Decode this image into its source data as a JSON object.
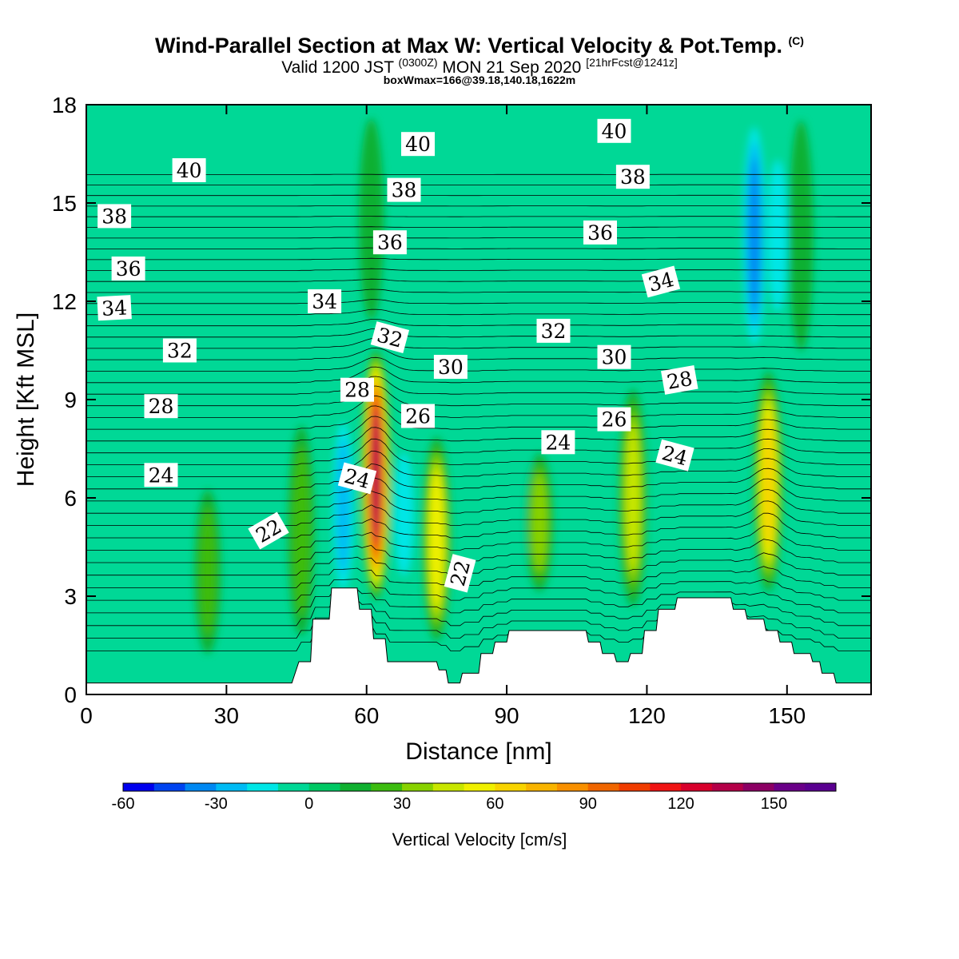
{
  "header": {
    "title": "Wind-Parallel Section at Max W: Vertical Velocity & Pot.Temp.",
    "title_tag": "(C)",
    "valid_prefix": "Valid 1200 JST",
    "valid_utc": "(0300Z)",
    "valid_date": "MON 21 Sep 2020",
    "forecast": "[21hrFcst@1241z]",
    "box_info": "boxWmax=166@39.18,140.18,1622m"
  },
  "chart_data": {
    "type": "heatmap",
    "xlabel": "Distance [nm]",
    "ylabel": "Height [Kft MSL]",
    "xlim": [
      0,
      168
    ],
    "ylim": [
      0,
      18
    ],
    "x_ticks": [
      "0",
      "30",
      "60",
      "90",
      "120",
      "150"
    ],
    "x_tick_values": [
      0,
      30,
      60,
      90,
      120,
      150
    ],
    "y_ticks": [
      "0",
      "3",
      "6",
      "9",
      "12",
      "15",
      "18"
    ],
    "y_tick_values": [
      0,
      3,
      6,
      9,
      12,
      15,
      18
    ],
    "background_level_color": "#00d896",
    "updrafts": [
      {
        "x": 26,
        "ymin": 1.0,
        "ymax": 6.5,
        "peak": 22
      },
      {
        "x": 46,
        "ymin": 1.5,
        "ymax": 8.5,
        "peak": 25
      },
      {
        "x": 62,
        "ymin": 2.8,
        "ymax": 10.6,
        "peak": 132
      },
      {
        "x": 75,
        "ymin": 1.5,
        "ymax": 8.0,
        "peak": 58
      },
      {
        "x": 97,
        "ymin": 3.0,
        "ymax": 7.5,
        "peak": 35
      },
      {
        "x": 117,
        "ymin": 2.5,
        "ymax": 9.5,
        "peak": 45
      },
      {
        "x": 146,
        "ymin": 3.0,
        "ymax": 10.0,
        "peak": 65
      },
      {
        "x": 61,
        "ymin": 11.0,
        "ymax": 18.0,
        "peak": 15
      },
      {
        "x": 153,
        "ymin": 10.0,
        "ymax": 18.0,
        "peak": 15
      }
    ],
    "downdrafts": [
      {
        "x": 55,
        "ymin": 2.5,
        "ymax": 9.0,
        "peak": -30
      },
      {
        "x": 68,
        "ymin": 3.0,
        "ymax": 8.0,
        "peak": -25
      },
      {
        "x": 84,
        "ymin": 4.0,
        "ymax": 7.5,
        "peak": -15
      },
      {
        "x": 94,
        "ymin": 4.0,
        "ymax": 7.5,
        "peak": -18
      },
      {
        "x": 143,
        "ymin": 10.0,
        "ymax": 18.0,
        "peak": -40
      },
      {
        "x": 148,
        "ymin": 11.0,
        "ymax": 17.0,
        "peak": -28
      }
    ],
    "terrain": [
      [
        0,
        0.35
      ],
      [
        44,
        0.35
      ],
      [
        45.5,
        1.0
      ],
      [
        48,
        1.0
      ],
      [
        48.5,
        2.3
      ],
      [
        52,
        2.3
      ],
      [
        52.5,
        3.25
      ],
      [
        58,
        3.25
      ],
      [
        58.5,
        2.6
      ],
      [
        61,
        2.6
      ],
      [
        61.5,
        1.7
      ],
      [
        64,
        1.7
      ],
      [
        64.5,
        1.0
      ],
      [
        75,
        1.0
      ],
      [
        75.5,
        0.75
      ],
      [
        77,
        0.75
      ],
      [
        77.5,
        0.35
      ],
      [
        80,
        0.35
      ],
      [
        80.5,
        0.65
      ],
      [
        84,
        0.65
      ],
      [
        84.5,
        1.25
      ],
      [
        87,
        1.25
      ],
      [
        87.5,
        1.6
      ],
      [
        90,
        1.6
      ],
      [
        90.5,
        1.95
      ],
      [
        107,
        1.95
      ],
      [
        107.5,
        1.6
      ],
      [
        110,
        1.6
      ],
      [
        110.5,
        1.25
      ],
      [
        113,
        1.25
      ],
      [
        113.5,
        1.0
      ],
      [
        116,
        1.0
      ],
      [
        116.5,
        1.25
      ],
      [
        119,
        1.25
      ],
      [
        119.5,
        1.95
      ],
      [
        122,
        1.95
      ],
      [
        122.5,
        2.6
      ],
      [
        126,
        2.6
      ],
      [
        126.5,
        2.95
      ],
      [
        138,
        2.95
      ],
      [
        138.5,
        2.6
      ],
      [
        141,
        2.6
      ],
      [
        141.5,
        2.3
      ],
      [
        145,
        2.3
      ],
      [
        145.5,
        1.95
      ],
      [
        148,
        1.95
      ],
      [
        148.5,
        1.6
      ],
      [
        151,
        1.6
      ],
      [
        151.5,
        1.25
      ],
      [
        155,
        1.25
      ],
      [
        155.5,
        1.0
      ],
      [
        157,
        1.0
      ],
      [
        157.5,
        0.65
      ],
      [
        160,
        0.65
      ],
      [
        160.5,
        0.35
      ],
      [
        168,
        0.35
      ]
    ],
    "contour_labels": [
      {
        "text": "40",
        "x": 22,
        "y": 16.0
      },
      {
        "text": "40",
        "x": 71,
        "y": 16.8
      },
      {
        "text": "40",
        "x": 113,
        "y": 17.2
      },
      {
        "text": "38",
        "x": 6,
        "y": 14.6
      },
      {
        "text": "38",
        "x": 68,
        "y": 15.4
      },
      {
        "text": "38",
        "x": 117,
        "y": 15.8
      },
      {
        "text": "36",
        "x": 9,
        "y": 13.0
      },
      {
        "text": "36",
        "x": 65,
        "y": 13.8
      },
      {
        "text": "36",
        "x": 110,
        "y": 14.1
      },
      {
        "text": "34",
        "x": 6,
        "y": 11.8,
        "rot": -3
      },
      {
        "text": "34",
        "x": 51,
        "y": 12.0
      },
      {
        "text": "34",
        "x": 123,
        "y": 12.6,
        "rot": -15
      },
      {
        "text": "32",
        "x": 20,
        "y": 10.5
      },
      {
        "text": "32",
        "x": 65,
        "y": 10.9,
        "rot": 15
      },
      {
        "text": "32",
        "x": 100,
        "y": 11.1
      },
      {
        "text": "30",
        "x": 78,
        "y": 10.0
      },
      {
        "text": "30",
        "x": 113,
        "y": 10.3
      },
      {
        "text": "28",
        "x": 58,
        "y": 9.3
      },
      {
        "text": "28",
        "x": 127,
        "y": 9.6,
        "rot": -10
      },
      {
        "text": "28",
        "x": 16,
        "y": 8.8
      },
      {
        "text": "26",
        "x": 71,
        "y": 8.5
      },
      {
        "text": "26",
        "x": 113,
        "y": 8.4
      },
      {
        "text": "24",
        "x": 16,
        "y": 6.7
      },
      {
        "text": "24",
        "x": 58,
        "y": 6.6,
        "rot": 15
      },
      {
        "text": "24",
        "x": 101,
        "y": 7.7
      },
      {
        "text": "24",
        "x": 126,
        "y": 7.3,
        "rot": 15
      },
      {
        "text": "22",
        "x": 39,
        "y": 5.0,
        "rot": -30
      },
      {
        "text": "22",
        "x": 80,
        "y": 3.7,
        "rot": -75
      }
    ],
    "colorbar": {
      "title": "Vertical Velocity [cm/s]",
      "colors": [
        "#0000ee",
        "#0044f0",
        "#0088f2",
        "#00bbf4",
        "#00e6e6",
        "#00d896",
        "#00c864",
        "#10b030",
        "#3cbc10",
        "#88d200",
        "#c8e600",
        "#f0f000",
        "#f8d400",
        "#f8b400",
        "#f89000",
        "#f06600",
        "#f03c00",
        "#f01414",
        "#d8002c",
        "#b40048",
        "#8c0064",
        "#6a0088",
        "#5a0090"
      ],
      "tick_labels": [
        "-60",
        "-30",
        "0",
        "30",
        "60",
        "90",
        "120",
        "150"
      ],
      "tick_values": [
        -60,
        -30,
        0,
        30,
        60,
        90,
        120,
        150
      ],
      "vmin": -60,
      "vmax": 170
    }
  }
}
